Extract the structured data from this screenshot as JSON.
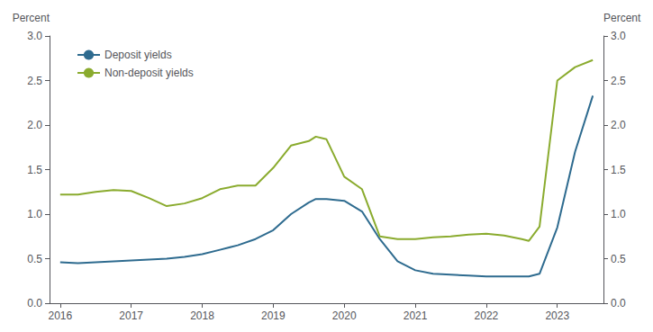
{
  "chart_data": {
    "type": "line",
    "ylabel": "Percent",
    "y2label": "Percent",
    "x": [
      2016.0,
      2016.25,
      2016.5,
      2016.75,
      2017.0,
      2017.25,
      2017.5,
      2017.75,
      2018.0,
      2018.25,
      2018.5,
      2018.75,
      2019.0,
      2019.25,
      2019.5,
      2019.6,
      2019.75,
      2020.0,
      2020.25,
      2020.5,
      2020.75,
      2021.0,
      2021.25,
      2021.5,
      2021.75,
      2022.0,
      2022.25,
      2022.5,
      2022.6,
      2022.75,
      2023.0,
      2023.25,
      2023.5
    ],
    "series": [
      {
        "name": "Deposit yields",
        "color": "#2e6b8f",
        "values": [
          0.46,
          0.45,
          0.46,
          0.47,
          0.48,
          0.49,
          0.5,
          0.52,
          0.55,
          0.6,
          0.65,
          0.72,
          0.82,
          1.0,
          1.13,
          1.17,
          1.17,
          1.15,
          1.03,
          0.72,
          0.47,
          0.37,
          0.33,
          0.32,
          0.31,
          0.3,
          0.3,
          0.3,
          0.3,
          0.33,
          0.85,
          1.7,
          2.33
        ]
      },
      {
        "name": "Non-deposit yields",
        "color": "#8aab2e",
        "values": [
          1.22,
          1.22,
          1.25,
          1.27,
          1.26,
          1.18,
          1.09,
          1.12,
          1.18,
          1.28,
          1.32,
          1.32,
          1.52,
          1.77,
          1.82,
          1.87,
          1.84,
          1.42,
          1.28,
          0.75,
          0.72,
          0.72,
          0.74,
          0.75,
          0.77,
          0.78,
          0.76,
          0.72,
          0.7,
          0.86,
          2.5,
          2.65,
          2.73
        ]
      }
    ],
    "xlim": [
      2015.85,
      2023.65
    ],
    "xticks": [
      2016,
      2017,
      2018,
      2019,
      2020,
      2021,
      2022,
      2023
    ],
    "ylim": [
      0.0,
      3.0
    ],
    "yticks": [
      {
        "value": 0.0,
        "label": "0.0"
      },
      0.5,
      {
        "value": 1.0,
        "label": "1.0"
      },
      1.5,
      {
        "value": 2.0,
        "label": "2.0"
      },
      2.5,
      {
        "value": 3.0,
        "label": "3.0"
      }
    ],
    "y2lim": [
      0.0,
      3.0
    ],
    "y2ticks": [
      {
        "value": 0.0,
        "label": "0.0"
      },
      0.5,
      {
        "value": 1.0,
        "label": "1.0"
      },
      1.5,
      {
        "value": 2.0,
        "label": "2.0"
      },
      2.5,
      {
        "value": 3.0,
        "label": "3.0"
      }
    ],
    "grid": false,
    "legend": "upper left"
  }
}
